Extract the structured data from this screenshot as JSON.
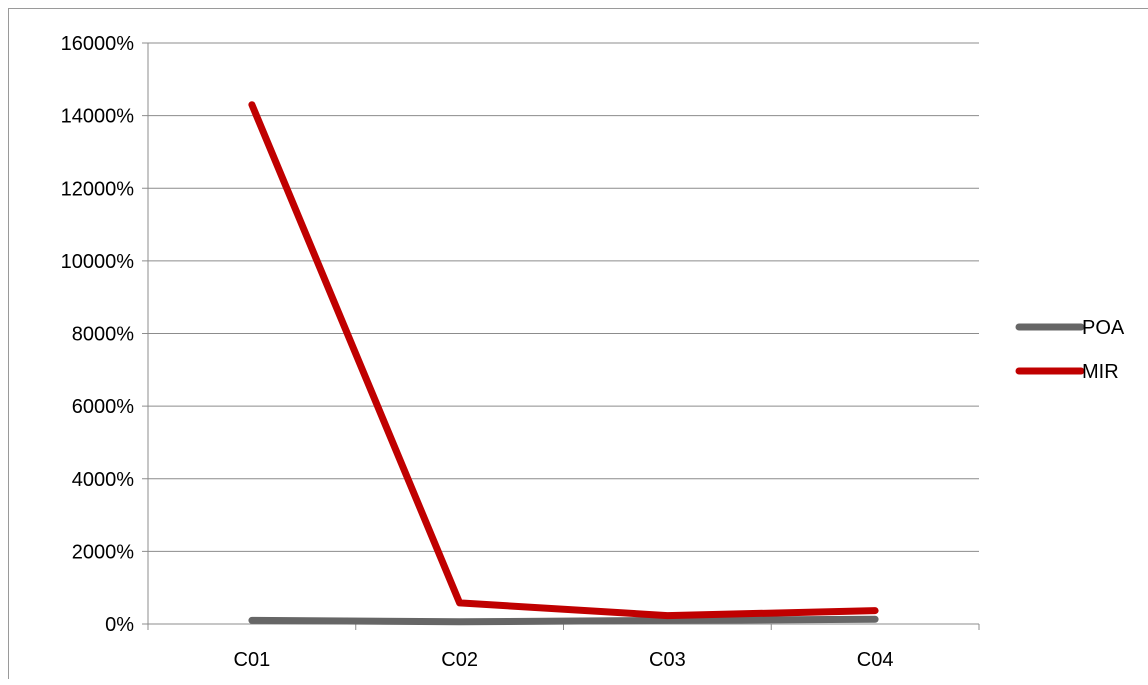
{
  "chart_data": {
    "type": "line",
    "title": "",
    "xlabel": "",
    "ylabel": "",
    "categories": [
      "C01",
      "C02",
      "C03",
      "C04"
    ],
    "ylim": [
      0,
      16000
    ],
    "yticks": [
      0,
      2000,
      4000,
      6000,
      8000,
      10000,
      12000,
      14000,
      16000
    ],
    "ytick_labels": [
      "0%",
      "2000%",
      "4000%",
      "6000%",
      "8000%",
      "10000%",
      "12000%",
      "14000%",
      "16000%"
    ],
    "grid": true,
    "legend": "right",
    "series": [
      {
        "name": "POA",
        "color": "#666666",
        "values": [
          100,
          60,
          100,
          130
        ]
      },
      {
        "name": "MIR",
        "color": "#c00000",
        "values": [
          14300,
          580,
          230,
          370
        ]
      }
    ]
  }
}
